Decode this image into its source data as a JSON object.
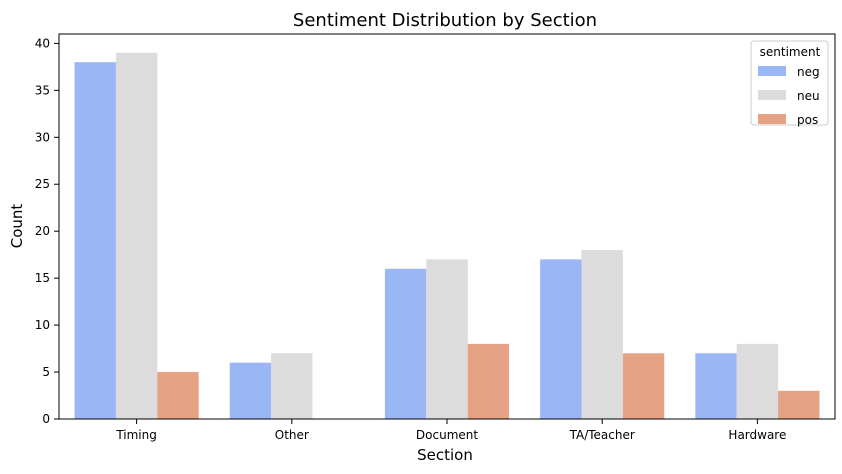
{
  "chart_data": {
    "type": "bar",
    "title": "Sentiment Distribution by Section",
    "xlabel": "Section",
    "ylabel": "Count",
    "categories": [
      "Timing",
      "Other",
      "Document",
      "TA/Teacher",
      "Hardware"
    ],
    "series": [
      {
        "name": "neg",
        "color": "#9bb6f4",
        "values": [
          38,
          6,
          16,
          17,
          7
        ]
      },
      {
        "name": "neu",
        "color": "#dcdcdc",
        "values": [
          39,
          7,
          17,
          18,
          8
        ]
      },
      {
        "name": "pos",
        "color": "#e6a285",
        "values": [
          5,
          null,
          8,
          7,
          3
        ]
      }
    ],
    "ylim": [
      0,
      41
    ],
    "yticks": [
      0,
      5,
      10,
      15,
      20,
      25,
      30,
      35,
      40
    ],
    "grid": false,
    "legend": {
      "title": "sentiment",
      "placement": "top-right"
    }
  }
}
